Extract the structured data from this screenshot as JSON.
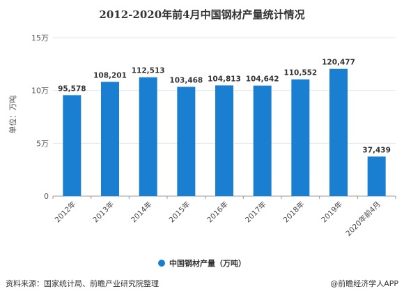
{
  "chart_data": {
    "type": "bar",
    "title": "2012-2020年前4月中国钢材产量统计情况",
    "categories": [
      "2012年",
      "2013年",
      "2014年",
      "2015年",
      "2016年",
      "2017年",
      "2018年",
      "2019年",
      "2020年前4月"
    ],
    "series": [
      {
        "name": "中国钢材产量（万吨）",
        "values": [
          95578,
          108201,
          112513,
          103468,
          104813,
          104642,
          110552,
          120477,
          37439
        ],
        "color": "#1a7fd0"
      }
    ],
    "data_labels": [
      "95,578",
      "108,201",
      "112,513",
      "103,468",
      "104,813",
      "104,642",
      "110,552",
      "120,477",
      "37,439"
    ],
    "ylabel": "单位：万吨",
    "ylim": [
      0,
      150000
    ],
    "yticks": [
      0,
      50000,
      100000,
      150000
    ],
    "ytick_labels": [
      "0",
      "5万",
      "10万",
      "15万"
    ],
    "grid": true,
    "legend_position": "bottom"
  },
  "footer": {
    "source": "资料来源：国家统计局、前瞻产业研究院整理",
    "credit": "@前瞻经济学人APP"
  }
}
